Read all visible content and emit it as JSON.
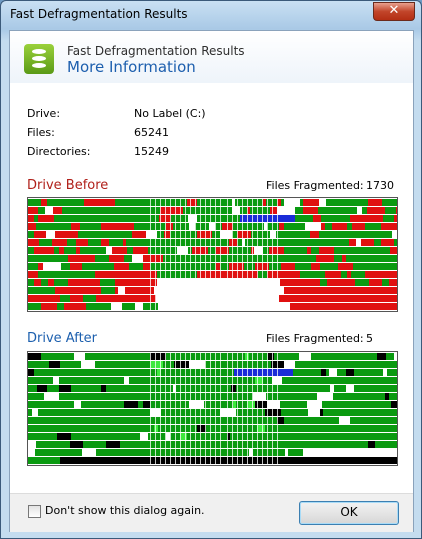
{
  "window": {
    "title": "Fast Defragmentation Results",
    "close_glyph": "✕"
  },
  "header": {
    "title": "Fast Defragmentation Results",
    "subtitle": "More Information",
    "icon": "database-icon"
  },
  "info": [
    {
      "label": "Drive:",
      "value": "No Label (C:)"
    },
    {
      "label": "Files:",
      "value": "65241"
    },
    {
      "label": "Directories:",
      "value": "15249"
    }
  ],
  "before": {
    "title": "Drive Before",
    "frag_label": "Files Fragmented:",
    "frag_value": "1730"
  },
  "after": {
    "title": "Drive After",
    "frag_label": "Files Fragmented:",
    "frag_value": "5"
  },
  "footer": {
    "checkbox_label": "Don't show this dialog again.",
    "checkbox_checked": false,
    "ok_label": "OK"
  },
  "colors": {
    "used": "#0a9a10",
    "fragmented": "#e01010",
    "free": "#ffffff",
    "system": "#000000",
    "directory": "#1a2cd8",
    "moved": "#3ee83e"
  }
}
